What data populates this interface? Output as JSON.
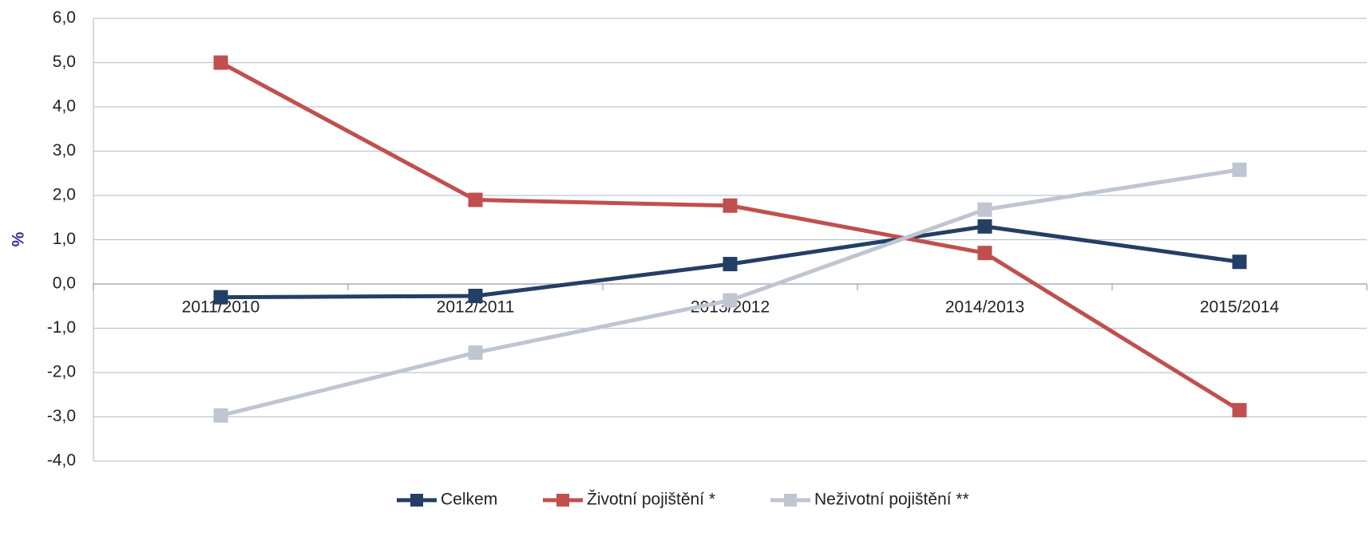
{
  "chart_data": {
    "type": "line",
    "y_label": "%",
    "categories": [
      "2011/2010",
      "2012/2011",
      "2013/2012",
      "2014/2013",
      "2015/2014"
    ],
    "series": [
      {
        "name": "Celkem",
        "color": "#243f66",
        "values": [
          -0.3,
          -0.27,
          0.45,
          1.3,
          0.5
        ]
      },
      {
        "name": "Životní pojištění *",
        "color": "#c0504d",
        "values": [
          5.0,
          1.9,
          1.77,
          0.7,
          -2.85
        ]
      },
      {
        "name": "Neživotní pojištění **",
        "color": "#bfc5d1",
        "values": [
          -2.97,
          -1.55,
          -0.37,
          1.68,
          2.58
        ]
      }
    ],
    "ylim": [
      -4,
      6
    ],
    "yticks": [
      {
        "value": -4,
        "label": "-4,0"
      },
      {
        "value": -3,
        "label": "-3,0"
      },
      {
        "value": -2,
        "label": "-2,0"
      },
      {
        "value": -1,
        "label": "-1,0"
      },
      {
        "value": 0,
        "label": "0,0"
      },
      {
        "value": 1,
        "label": "1,0"
      },
      {
        "value": 2,
        "label": "2,0"
      },
      {
        "value": 3,
        "label": "3,0"
      },
      {
        "value": 4,
        "label": "4,0"
      },
      {
        "value": 5,
        "label": "5,0"
      },
      {
        "value": 6,
        "label": "6,0"
      }
    ],
    "grid": true,
    "legend": "bottom"
  }
}
